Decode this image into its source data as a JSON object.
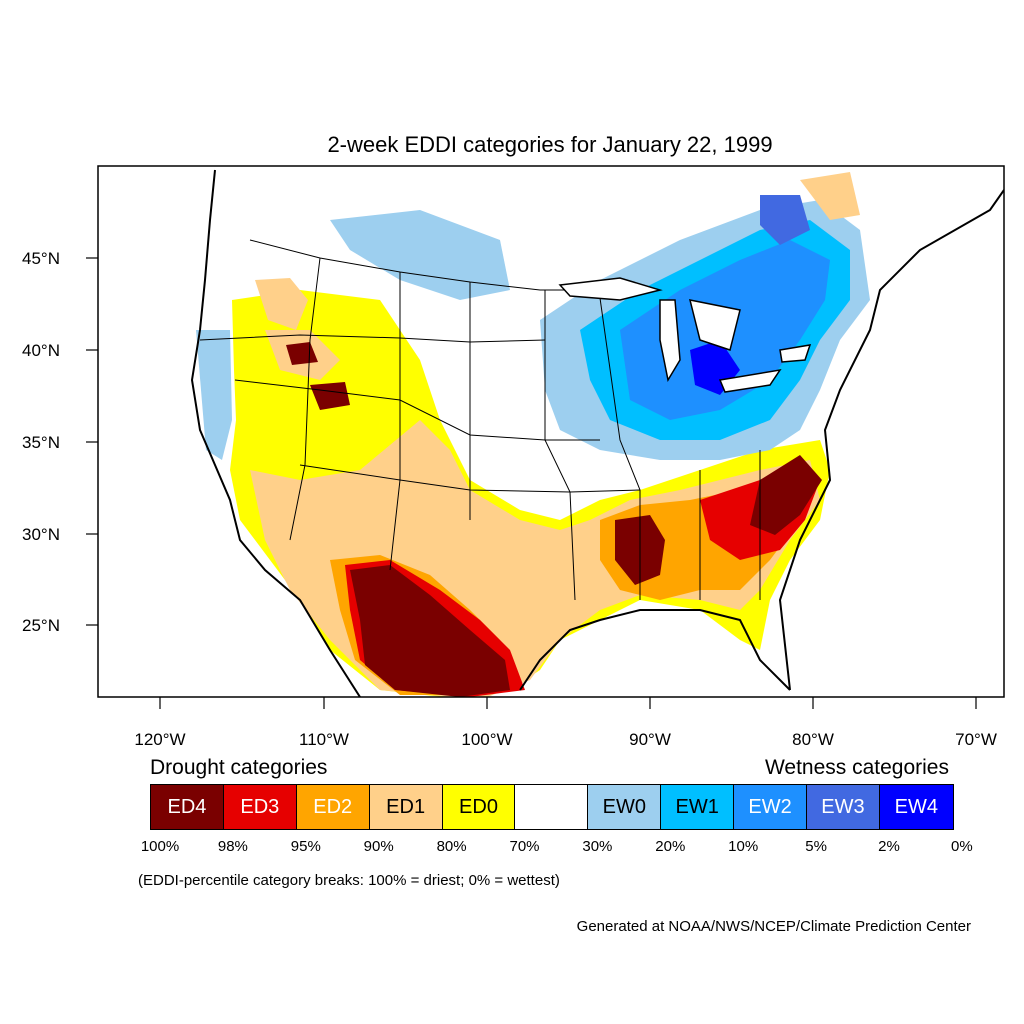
{
  "title": "2-week EDDI categories for January 22, 1999",
  "lat_labels": [
    "45°N",
    "40°N",
    "35°N",
    "30°N",
    "25°N"
  ],
  "lon_labels": [
    "120°W",
    "110°W",
    "100°W",
    "90°W",
    "80°W",
    "70°W"
  ],
  "legend": {
    "drought_label": "Drought categories",
    "wetness_label": "Wetness categories",
    "categories": [
      {
        "label": "ED4",
        "color": "#7a0000",
        "text_color": "#ffffff"
      },
      {
        "label": "ED3",
        "color": "#e60000",
        "text_color": "#ffffff"
      },
      {
        "label": "ED2",
        "color": "#ffa500",
        "text_color": "#ffffff"
      },
      {
        "label": "ED1",
        "color": "#ffd08a",
        "text_color": "#000000"
      },
      {
        "label": "ED0",
        "color": "#ffff00",
        "text_color": "#000000"
      },
      {
        "label": "",
        "color": "#ffffff",
        "text_color": "#000000"
      },
      {
        "label": "EW0",
        "color": "#9dcfef",
        "text_color": "#000000"
      },
      {
        "label": "EW1",
        "color": "#00bfff",
        "text_color": "#000000"
      },
      {
        "label": "EW2",
        "color": "#1e90ff",
        "text_color": "#ffffff"
      },
      {
        "label": "EW3",
        "color": "#4169e1",
        "text_color": "#ffffff"
      },
      {
        "label": "EW4",
        "color": "#0000ff",
        "text_color": "#ffffff"
      }
    ],
    "percent_breaks": [
      "100%",
      "98%",
      "95%",
      "90%",
      "80%",
      "70%",
      "30%",
      "20%",
      "10%",
      "5%",
      "2%",
      "0%"
    ]
  },
  "note": "(EDDI-percentile category breaks: 100% = driest; 0% = wettest)",
  "credit": "Generated at NOAA/NWS/NCEP/Climate Prediction Center"
}
